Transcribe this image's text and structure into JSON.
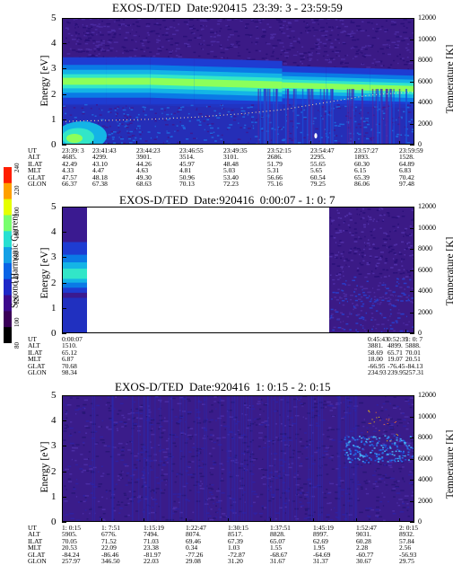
{
  "panels": [
    {
      "title": "EXOS-D/TED  Date:920415  23:39: 3 - 23:59:59",
      "left_axis_label": "Energy [eV]",
      "right_axis_label": "Temperature [K]",
      "orbit_labels": [
        "UT",
        "ALT",
        "ILAT",
        "MLT",
        "GLAT",
        "GLON"
      ],
      "orbit_columns": [
        [
          "23:39: 3",
          "4685.",
          "42.49",
          "4.33",
          "47.57",
          "66.37"
        ],
        [
          "23:41:43",
          "4299.",
          "43.10",
          "4.47",
          "48.18",
          "67.38"
        ],
        [
          "23:44:23",
          "3901.",
          "44.26",
          "4.63",
          "49.30",
          "68.63"
        ],
        [
          "23:46:55",
          "3514.",
          "45.97",
          "4.81",
          "50.96",
          "70.13"
        ],
        [
          "23:49:35",
          "3101.",
          "48.48",
          "5.03",
          "53.40",
          "72.23"
        ],
        [
          "23:52:15",
          "2686.",
          "51.79",
          "5.31",
          "56.66",
          "75.16"
        ],
        [
          "23:54:47",
          "2295.",
          "55.65",
          "5.65",
          "60.54",
          "79.25"
        ],
        [
          "23:57:27",
          "1893.",
          "60.30",
          "6.15",
          "65.39",
          "86.06"
        ],
        [
          "23:59:59",
          "1528.",
          "64.89",
          "6.83",
          "70.42",
          "97.48"
        ]
      ]
    },
    {
      "title": "EXOS-D/TED  Date:920416  0:00:07 - 1: 0: 7",
      "left_axis_label": "Energy [eV]",
      "right_axis_label": "Temperature [K]",
      "orbit_labels": [
        "UT",
        "ALT",
        "ILAT",
        "MLT",
        "GLAT",
        "GLON"
      ],
      "orbit_columns": [
        [
          "0:00:07",
          "1510.",
          "65.12",
          "6.87",
          "70.68",
          "98.34"
        ],
        [
          "0:45:43",
          "3881.",
          "58.69",
          "18.00",
          "-66.95",
          "234.93"
        ],
        [
          "0:52:39",
          "4899.",
          "65.71",
          "19.07",
          "-76.45",
          "239.95"
        ],
        [
          "1: 0: 7",
          "5888.",
          "70.01",
          "20.51",
          "-84.13",
          "257.31"
        ]
      ]
    },
    {
      "title": "EXOS-D/TED  Date:920416  1: 0:15 - 2: 0:15",
      "left_axis_label": "Energy [eV]",
      "right_axis_label": "Temperature [K]",
      "orbit_labels": [
        "UT",
        "ALT",
        "ILAT",
        "MLT",
        "GLAT",
        "GLON"
      ],
      "orbit_columns": [
        [
          "1: 0:15",
          "5905.",
          "70.05",
          "20.53",
          "-84.24",
          "257.97"
        ],
        [
          "1: 7:51",
          "6776.",
          "71.52",
          "22.09",
          "-86.46",
          "346.50"
        ],
        [
          "1:15:19",
          "7494.",
          "71.03",
          "23.38",
          "-81.97",
          "22.03"
        ],
        [
          "1:22:47",
          "8074.",
          "69.46",
          "0.34",
          "-77.26",
          "29.08"
        ],
        [
          "1:30:15",
          "8517.",
          "67.39",
          "1.03",
          "-72.87",
          "31.20"
        ],
        [
          "1:37:51",
          "8828.",
          "65.07",
          "1.55",
          "-68.67",
          "31.67"
        ],
        [
          "1:45:19",
          "8997.",
          "62.69",
          "1.95",
          "-64.69",
          "31.37"
        ],
        [
          "1:52:47",
          "9031.",
          "60.28",
          "2.28",
          "-60.77",
          "30.67"
        ],
        [
          "2: 0:15",
          "8932.",
          "57.84",
          "2.56",
          "-56.93",
          "29.75"
        ]
      ]
    }
  ],
  "colorbar": {
    "label": "Second Harmonic Current",
    "ticks": [
      "80",
      "100",
      "120",
      "140",
      "160",
      "180",
      "200",
      "220",
      "240"
    ],
    "colors": [
      "#000000",
      "#3a0058",
      "#3c0a8c",
      "#1e28c8",
      "#0a64e6",
      "#14a0e6",
      "#28e0d2",
      "#78ff6e",
      "#e6ff00",
      "#ffa000",
      "#ff1e00"
    ]
  },
  "chart_data": [
    {
      "type": "heatmap",
      "title": "EXOS-D/TED  Date:920415  23:39: 3 - 23:59:59",
      "ylabel": "Energy [eV]",
      "ylabel_right": "Temperature [K]",
      "ylim": [
        0,
        5
      ],
      "ylim_right": [
        0,
        12000
      ],
      "x_ticks": [
        "23:39: 3",
        "23:41:43",
        "23:44:23",
        "23:46:55",
        "23:49:35",
        "23:52:15",
        "23:54:47",
        "23:57:27",
        "23:59:59"
      ],
      "y_ticks": [
        0,
        1,
        2,
        3,
        4,
        5
      ],
      "y_ticks_right": [
        0,
        2000,
        4000,
        6000,
        8000,
        10000,
        12000
      ],
      "features": {
        "band_center_ev": [
          2.5,
          2.5,
          2.5,
          2.45,
          2.4,
          2.35,
          2.3,
          2.25,
          2.2
        ],
        "low_energy_enhancement_ev": [
          0,
          1.0
        ],
        "temperature_trace_k": [
          2200,
          2300,
          2400,
          2600,
          2900,
          3300,
          4000,
          4700,
          5000
        ]
      }
    },
    {
      "type": "heatmap",
      "title": "EXOS-D/TED  Date:920416  0:00:07 - 1: 0: 7",
      "ylabel": "Energy [eV]",
      "ylabel_right": "Temperature [K]",
      "ylim": [
        0,
        5
      ],
      "ylim_right": [
        0,
        12000
      ],
      "x_ticks": [
        "0:00:07",
        "0:45:43",
        "0:52:39",
        "1: 0: 7"
      ],
      "y_ticks": [
        0,
        1,
        2,
        3,
        4,
        5
      ],
      "y_ticks_right": [
        0,
        2000,
        4000,
        6000,
        8000,
        10000,
        12000
      ],
      "features": {
        "data_intervals": [
          [
            "0:00:07",
            "0:02:30"
          ],
          [
            "0:45:43",
            "1: 0: 7"
          ]
        ]
      }
    },
    {
      "type": "heatmap",
      "title": "EXOS-D/TED  Date:920416  1: 0:15 - 2: 0:15",
      "ylabel": "Energy [eV]",
      "ylabel_right": "Temperature [K]",
      "ylim": [
        0,
        5
      ],
      "ylim_right": [
        0,
        12000
      ],
      "x_ticks": [
        "1: 0:15",
        "1: 7:51",
        "1:15:19",
        "1:22:47",
        "1:30:15",
        "1:37:51",
        "1:45:19",
        "1:52:47",
        "2: 0:15"
      ],
      "y_ticks": [
        0,
        1,
        2,
        3,
        4,
        5
      ],
      "y_ticks_right": [
        0,
        2000,
        4000,
        6000,
        8000,
        10000,
        12000
      ],
      "features": {
        "late_band_center_ev": 2.9
      }
    }
  ]
}
